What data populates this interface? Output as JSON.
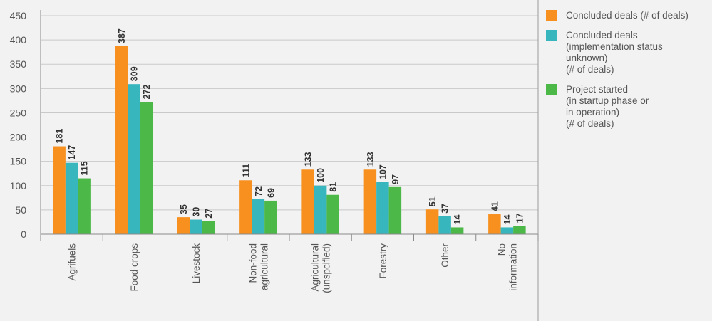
{
  "chart_data": {
    "type": "bar",
    "title": "",
    "xlabel": "",
    "ylabel": "",
    "ylim": [
      0,
      450
    ],
    "yticks": [
      0,
      50,
      100,
      150,
      200,
      250,
      300,
      350,
      400,
      450
    ],
    "grid": true,
    "legend_position": "right",
    "categories": [
      "Agrifuels",
      "Food crops",
      "Livestock",
      "Non-food\nagricultural",
      "Agricultural\n(unspcified)",
      "Forestry",
      "Other",
      "No\ninformation"
    ],
    "series": [
      {
        "name": "Concluded deals (# of deals)",
        "color": "#f7901e",
        "values": [
          181,
          387,
          35,
          111,
          133,
          133,
          51,
          41
        ]
      },
      {
        "name": "Concluded deals\n(implementation status\nunknown)\n(# of deals)",
        "color": "#37b6bd",
        "values": [
          147,
          309,
          30,
          72,
          100,
          107,
          37,
          14
        ]
      },
      {
        "name": "Project started\n(in startup phase or\nin operation)\n(# of deals)",
        "color": "#4cb848",
        "values": [
          115,
          272,
          27,
          69,
          81,
          97,
          14,
          17
        ]
      }
    ]
  }
}
